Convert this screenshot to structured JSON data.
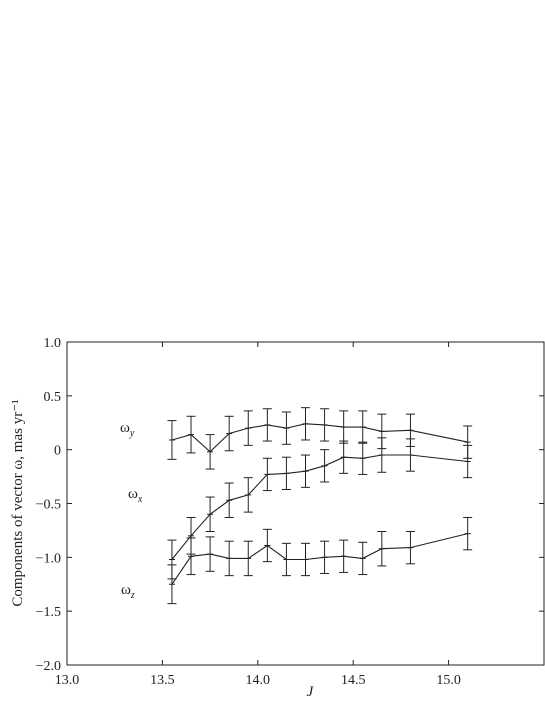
{
  "chart_data": {
    "type": "line",
    "xlabel": "J",
    "ylabel": "Components of vector ω, mas yr⁻¹",
    "xlim": [
      13.0,
      15.5
    ],
    "ylim": [
      -2.0,
      1.0
    ],
    "xticks": [
      "13.0",
      "13.5",
      "14.0",
      "14.5",
      "15.0"
    ],
    "xtick_values": [
      13.0,
      13.5,
      14.0,
      14.5,
      15.0
    ],
    "yticks": [
      "1.0",
      "0.5",
      "0",
      "−0.5",
      "−1.0",
      "−1.5",
      "−2.0"
    ],
    "ytick_values": [
      1.0,
      0.5,
      0.0,
      -0.5,
      -1.0,
      -1.5,
      -2.0
    ],
    "grid": false,
    "series": [
      {
        "name": "ω_y",
        "label_main": "ω",
        "label_sub": "y",
        "x": [
          13.55,
          13.65,
          13.75,
          13.85,
          13.95,
          14.05,
          14.15,
          14.25,
          14.35,
          14.45,
          14.55,
          14.65,
          14.8,
          15.1
        ],
        "y": [
          0.09,
          0.14,
          -0.02,
          0.15,
          0.2,
          0.23,
          0.2,
          0.24,
          0.23,
          0.21,
          0.21,
          0.17,
          0.18,
          0.07
        ],
        "err": [
          0.18,
          0.17,
          0.16,
          0.16,
          0.16,
          0.15,
          0.15,
          0.15,
          0.15,
          0.15,
          0.15,
          0.16,
          0.15,
          0.15
        ]
      },
      {
        "name": "ω_x",
        "label_main": "ω",
        "label_sub": "x",
        "x": [
          13.55,
          13.65,
          13.75,
          13.85,
          13.95,
          14.05,
          14.15,
          14.25,
          14.35,
          14.45,
          14.55,
          14.65,
          14.8,
          15.1
        ],
        "y": [
          -1.02,
          -0.8,
          -0.6,
          -0.47,
          -0.42,
          -0.23,
          -0.22,
          -0.2,
          -0.15,
          -0.07,
          -0.08,
          -0.05,
          -0.05,
          -0.11
        ],
        "err": [
          0.18,
          0.17,
          0.16,
          0.16,
          0.16,
          0.15,
          0.15,
          0.15,
          0.15,
          0.15,
          0.15,
          0.16,
          0.15,
          0.15
        ]
      },
      {
        "name": "ω_z",
        "label_main": "ω",
        "label_sub": "z",
        "x": [
          13.55,
          13.65,
          13.75,
          13.85,
          13.95,
          14.05,
          14.15,
          14.25,
          14.35,
          14.45,
          14.55,
          14.65,
          14.8,
          15.1
        ],
        "y": [
          -1.25,
          -0.99,
          -0.97,
          -1.01,
          -1.01,
          -0.89,
          -1.02,
          -1.02,
          -1.0,
          -0.99,
          -1.01,
          -0.92,
          -0.91,
          -0.78
        ],
        "err": [
          0.18,
          0.17,
          0.16,
          0.16,
          0.16,
          0.15,
          0.15,
          0.15,
          0.15,
          0.15,
          0.15,
          0.16,
          0.15,
          0.15
        ]
      }
    ]
  }
}
